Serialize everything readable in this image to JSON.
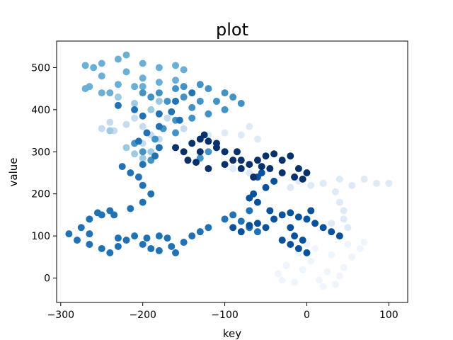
{
  "chart_data": {
    "type": "scatter",
    "title": "plot",
    "xlabel": "key",
    "ylabel": "value",
    "xlim": [
      -305,
      123
    ],
    "ylim": [
      -58,
      563
    ],
    "x_ticks": [
      -300,
      -200,
      -100,
      0,
      100
    ],
    "x_tick_labels": [
      "−300",
      "−200",
      "−100",
      "0",
      "100"
    ],
    "y_ticks": [
      0,
      100,
      200,
      300,
      400,
      500
    ],
    "y_tick_labels": [
      "0",
      "100",
      "200",
      "300",
      "400",
      "500"
    ],
    "grid": false,
    "legend": "none",
    "colormap": "Blues",
    "series": [
      {
        "color": "#eff5fc",
        "points": [
          [
            -35,
            10
          ],
          [
            -25,
            30
          ],
          [
            -15,
            -10
          ],
          [
            -5,
            20
          ],
          [
            5,
            40
          ],
          [
            15,
            -5
          ],
          [
            25,
            15
          ],
          [
            35,
            -15
          ],
          [
            45,
            25
          ],
          [
            55,
            50
          ],
          [
            65,
            70
          ],
          [
            70,
            85
          ],
          [
            40,
            5
          ],
          [
            20,
            -20
          ],
          [
            -30,
            -5
          ],
          [
            -10,
            60
          ],
          [
            0,
            80
          ],
          [
            10,
            70
          ],
          [
            30,
            55
          ],
          [
            50,
            80
          ]
        ]
      },
      {
        "color": "#deebf7",
        "points": [
          [
            -10,
            230
          ],
          [
            5,
            220
          ],
          [
            20,
            225
          ],
          [
            40,
            235
          ],
          [
            55,
            220
          ],
          [
            70,
            235
          ],
          [
            85,
            225
          ],
          [
            100,
            225
          ],
          [
            35,
            205
          ],
          [
            40,
            180
          ],
          [
            45,
            160
          ],
          [
            50,
            120
          ],
          [
            30,
            130
          ],
          [
            45,
            140
          ],
          [
            -20,
            215
          ],
          [
            -70,
            250
          ],
          [
            -90,
            260
          ],
          [
            -80,
            340
          ],
          [
            -100,
            345
          ],
          [
            -70,
            360
          ],
          [
            -120,
            340
          ],
          [
            -60,
            330
          ]
        ]
      },
      {
        "color": "#c6dbef",
        "points": [
          [
            -240,
            370
          ],
          [
            -235,
            350
          ],
          [
            -250,
            355
          ],
          [
            -220,
            365
          ],
          [
            -200,
            360
          ],
          [
            -190,
            340
          ],
          [
            -180,
            330
          ],
          [
            -200,
            320
          ],
          [
            -170,
            380
          ],
          [
            -210,
            380
          ],
          [
            -150,
            355
          ]
        ]
      },
      {
        "color": "#9ecae1",
        "points": [
          [
            -230,
            430
          ],
          [
            -210,
            415
          ],
          [
            -190,
            400
          ],
          [
            -220,
            310
          ],
          [
            -210,
            295
          ],
          [
            -200,
            285
          ],
          [
            -190,
            300
          ],
          [
            -240,
            350
          ],
          [
            -180,
            420
          ]
        ]
      },
      {
        "color": "#6baed6",
        "points": [
          [
            -270,
            505
          ],
          [
            -260,
            500
          ],
          [
            -250,
            510
          ],
          [
            -230,
            520
          ],
          [
            -220,
            530
          ],
          [
            -200,
            510
          ],
          [
            -180,
            500
          ],
          [
            -160,
            505
          ],
          [
            -150,
            495
          ],
          [
            -200,
            475
          ],
          [
            -220,
            490
          ],
          [
            -250,
            480
          ],
          [
            -230,
            460
          ],
          [
            -210,
            455
          ],
          [
            -270,
            450
          ],
          [
            -250,
            440
          ],
          [
            -200,
            455
          ],
          [
            -180,
            465
          ],
          [
            -160,
            470
          ],
          [
            -240,
            440
          ],
          [
            -265,
            455
          ]
        ]
      },
      {
        "color": "#4292c6",
        "points": [
          [
            -180,
            440
          ],
          [
            -160,
            450
          ],
          [
            -150,
            455
          ],
          [
            -130,
            460
          ],
          [
            -120,
            450
          ],
          [
            -100,
            440
          ],
          [
            -90,
            430
          ],
          [
            -80,
            415
          ],
          [
            -100,
            400
          ],
          [
            -120,
            390
          ],
          [
            -140,
            405
          ],
          [
            -150,
            430
          ],
          [
            -170,
            420
          ],
          [
            -190,
            430
          ],
          [
            -200,
            440
          ],
          [
            -110,
            420
          ],
          [
            -130,
            420
          ],
          [
            -140,
            380
          ],
          [
            -160,
            375
          ],
          [
            -175,
            355
          ],
          [
            -160,
            345
          ],
          [
            -185,
            330
          ],
          [
            -210,
            320
          ],
          [
            -200,
            300
          ],
          [
            -190,
            280
          ],
          [
            -120,
            300
          ],
          [
            -100,
            300
          ],
          [
            -130,
            285
          ]
        ]
      },
      {
        "color": "#2171b5",
        "points": [
          [
            -230,
            410
          ],
          [
            -210,
            400
          ],
          [
            -200,
            385
          ],
          [
            -180,
            390
          ],
          [
            -165,
            395
          ],
          [
            -155,
            375
          ],
          [
            -180,
            360
          ],
          [
            -195,
            345
          ],
          [
            -205,
            325
          ],
          [
            -180,
            310
          ],
          [
            -185,
            290
          ],
          [
            -200,
            270
          ],
          [
            -215,
            250
          ],
          [
            -225,
            265
          ],
          [
            -205,
            240
          ],
          [
            -200,
            220
          ],
          [
            -190,
            200
          ],
          [
            -200,
            180
          ],
          [
            -215,
            165
          ],
          [
            -240,
            160
          ],
          [
            -250,
            150
          ],
          [
            -265,
            140
          ],
          [
            -275,
            120
          ],
          [
            -290,
            105
          ],
          [
            -280,
            90
          ],
          [
            -265,
            80
          ],
          [
            -250,
            70
          ],
          [
            -240,
            60
          ],
          [
            -230,
            75
          ],
          [
            -220,
            90
          ],
          [
            -200,
            80
          ],
          [
            -190,
            70
          ],
          [
            -180,
            65
          ],
          [
            -165,
            75
          ],
          [
            -160,
            60
          ],
          [
            -150,
            85
          ],
          [
            -140,
            100
          ],
          [
            -130,
            110
          ],
          [
            -120,
            120
          ],
          [
            -100,
            140
          ],
          [
            -90,
            150
          ],
          [
            -80,
            135
          ],
          [
            -70,
            120
          ],
          [
            -60,
            110
          ],
          [
            -70,
            160
          ],
          [
            -180,
            100
          ],
          [
            -195,
            95
          ],
          [
            -170,
            95
          ],
          [
            -210,
            100
          ],
          [
            -230,
            95
          ],
          [
            -235,
            150
          ],
          [
            -255,
            155
          ],
          [
            -265,
            105
          ],
          [
            -160,
            420
          ],
          [
            -140,
            440
          ]
        ]
      },
      {
        "color": "#08519c",
        "points": [
          [
            -90,
            120
          ],
          [
            -80,
            110
          ],
          [
            -70,
            125
          ],
          [
            -60,
            130
          ],
          [
            -50,
            120
          ],
          [
            -40,
            140
          ],
          [
            -30,
            150
          ],
          [
            -20,
            155
          ],
          [
            -10,
            145
          ],
          [
            0,
            140
          ],
          [
            10,
            130
          ],
          [
            20,
            120
          ],
          [
            30,
            110
          ],
          [
            40,
            100
          ],
          [
            -15,
            100
          ],
          [
            -20,
            80
          ],
          [
            -10,
            70
          ],
          [
            0,
            60
          ],
          [
            -5,
            90
          ],
          [
            -30,
            90
          ],
          [
            -60,
            180
          ],
          [
            -70,
            190
          ],
          [
            -65,
            200
          ],
          [
            -50,
            215
          ],
          [
            -40,
            230
          ],
          [
            -55,
            250
          ],
          [
            -20,
            120
          ],
          [
            5,
            160
          ],
          [
            -45,
            160
          ],
          [
            -60,
            240
          ]
        ]
      },
      {
        "color": "#08306b",
        "points": [
          [
            -160,
            310
          ],
          [
            -150,
            300
          ],
          [
            -140,
            320
          ],
          [
            -130,
            330
          ],
          [
            -120,
            325
          ],
          [
            -110,
            310
          ],
          [
            -100,
            300
          ],
          [
            -90,
            280
          ],
          [
            -80,
            260
          ],
          [
            -70,
            270
          ],
          [
            -60,
            280
          ],
          [
            -50,
            290
          ],
          [
            -40,
            295
          ],
          [
            -30,
            280
          ],
          [
            -20,
            290
          ],
          [
            -10,
            260
          ],
          [
            0,
            250
          ],
          [
            -5,
            235
          ],
          [
            -15,
            240
          ],
          [
            -30,
            250
          ],
          [
            -45,
            260
          ],
          [
            -55,
            265
          ],
          [
            -80,
            280
          ],
          [
            -100,
            270
          ],
          [
            -120,
            260
          ],
          [
            -135,
            275
          ],
          [
            -145,
            280
          ],
          [
            -130,
            300
          ],
          [
            -110,
            320
          ],
          [
            -125,
            340
          ],
          [
            -85,
            300
          ],
          [
            -65,
            240
          ]
        ]
      }
    ]
  }
}
